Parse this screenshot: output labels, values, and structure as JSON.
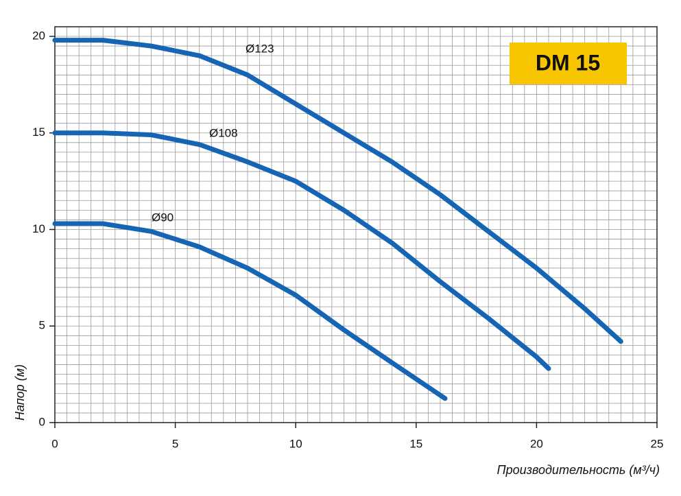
{
  "chart_data": {
    "type": "line",
    "title": "DM 15",
    "x_label": "Производительность (м³/ч)",
    "y_label": "Напор (м)",
    "xlim": [
      0,
      25
    ],
    "ylim": [
      0,
      20
    ],
    "xticks": [
      0,
      5,
      10,
      15,
      20,
      25
    ],
    "yticks": [
      0,
      5,
      10,
      15,
      20
    ],
    "grid": true,
    "grid_step": 0.5,
    "series": [
      {
        "name": "Ø123",
        "color": "#1565b4",
        "x": [
          0,
          2,
          4,
          6,
          8,
          10,
          12,
          14,
          16,
          18,
          20,
          22,
          23.5
        ],
        "values": [
          19.8,
          19.8,
          19.5,
          19.0,
          18.0,
          16.5,
          15.0,
          13.5,
          11.8,
          9.9,
          8.0,
          5.9,
          4.2
        ]
      },
      {
        "name": "Ø108",
        "color": "#1565b4",
        "x": [
          0,
          2,
          4,
          6,
          8,
          10,
          12,
          14,
          16,
          18,
          20,
          20.5
        ],
        "values": [
          15.0,
          15.0,
          14.9,
          14.4,
          13.5,
          12.5,
          11.0,
          9.3,
          7.3,
          5.4,
          3.4,
          2.8
        ]
      },
      {
        "name": "Ø90",
        "color": "#1565b4",
        "x": [
          0,
          2,
          4,
          6,
          8,
          10,
          12,
          14,
          16.2
        ],
        "values": [
          10.3,
          10.3,
          9.9,
          9.1,
          8.0,
          6.6,
          4.8,
          3.1,
          1.25
        ]
      }
    ]
  }
}
